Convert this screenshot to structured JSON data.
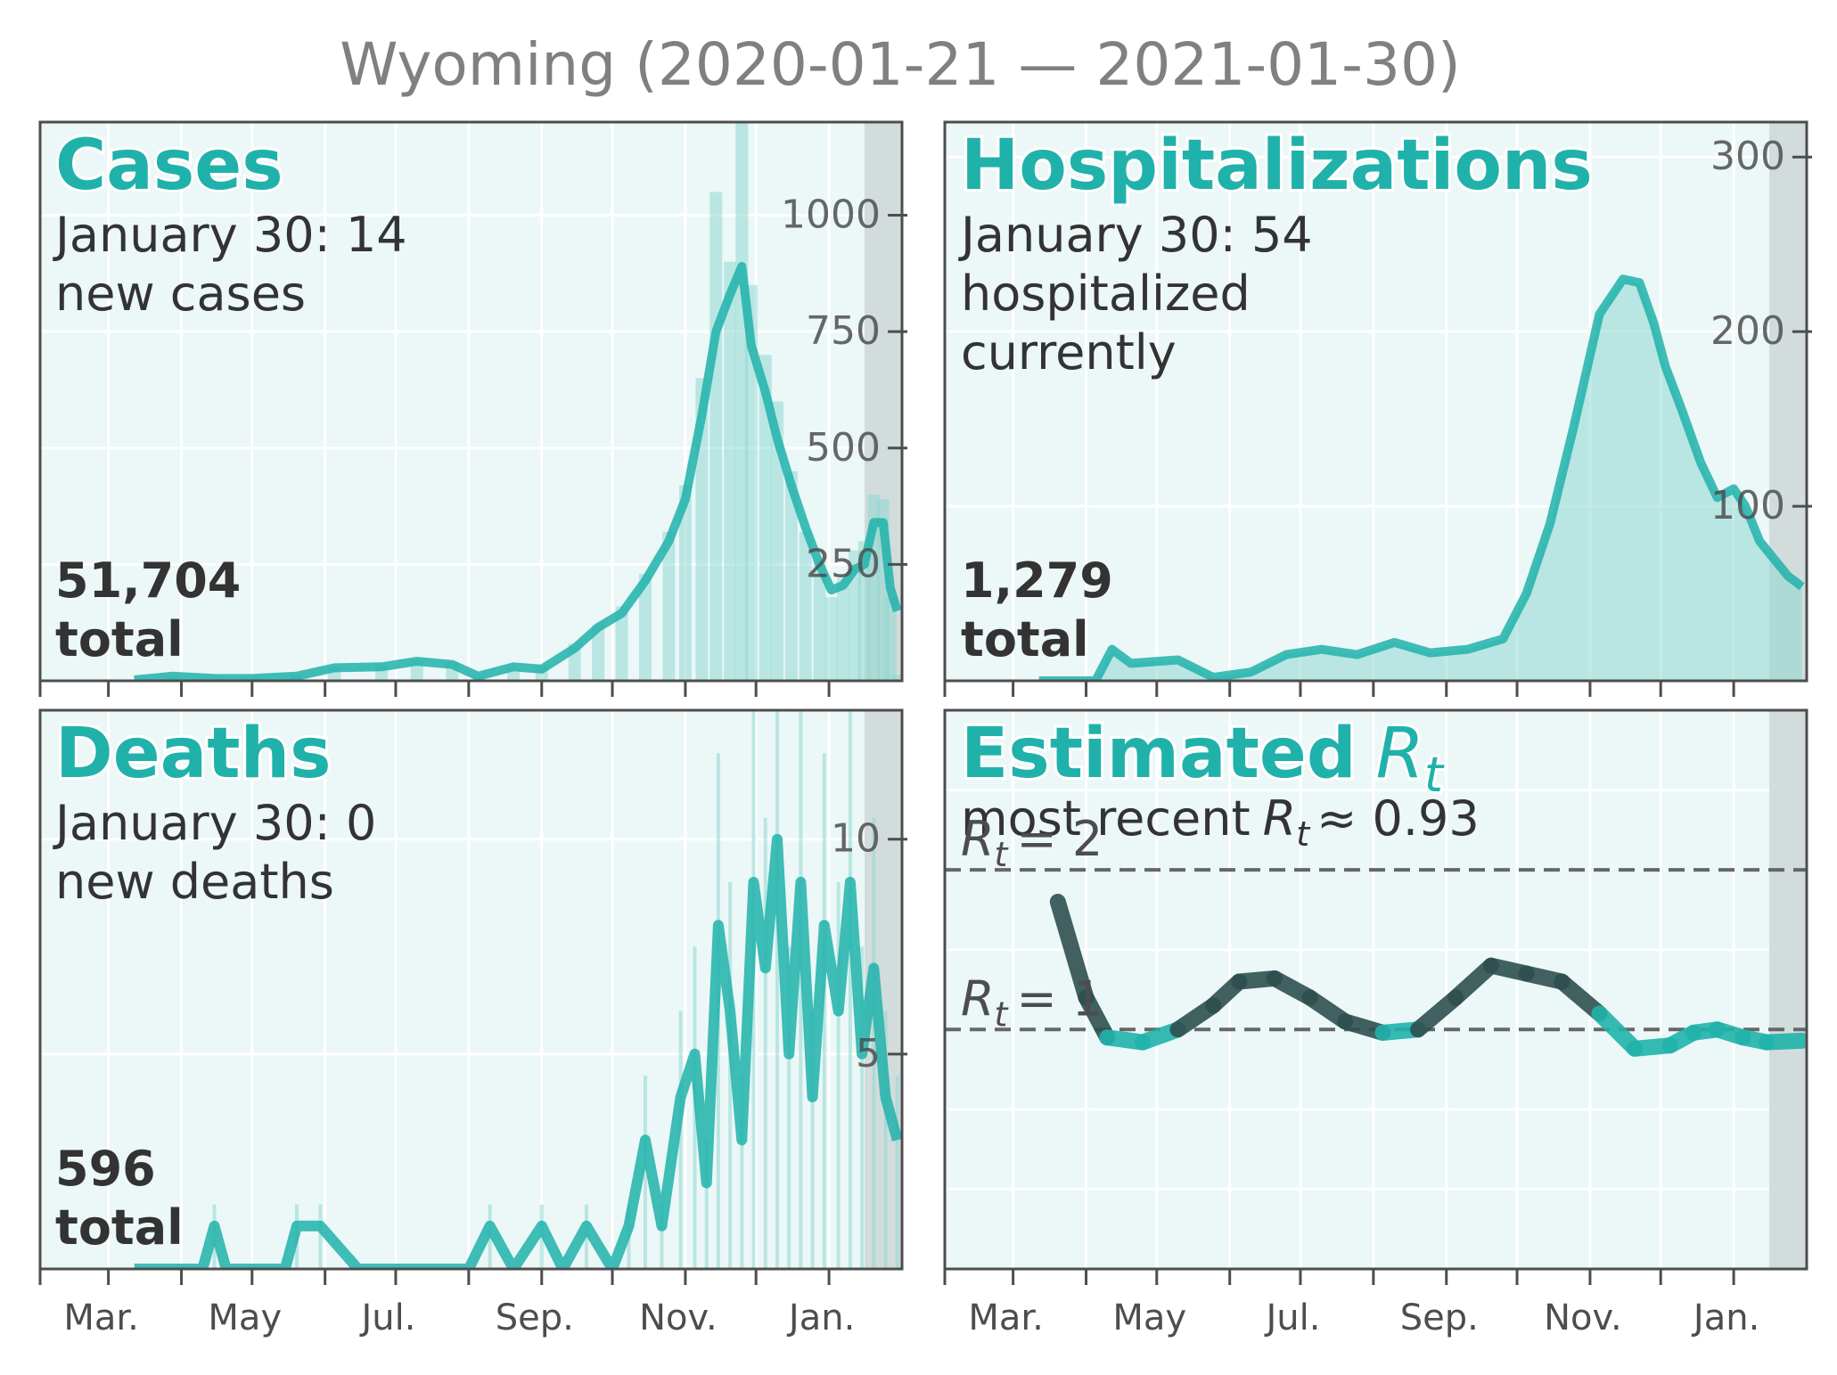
{
  "title": "Wyoming (2020-01-21 — 2021-01-30)",
  "colors": {
    "accent": "#20b2aa",
    "bar": "#8fd8d2",
    "panel_bg": "#ecf7f7",
    "projection": "#d3dcdc",
    "dark_line": "#2f4f4f",
    "text": "#333333",
    "muted": "#777777"
  },
  "x_ticks": [
    "Mar.",
    "May",
    "Jul.",
    "Sep.",
    "Nov.",
    "Jan."
  ],
  "panels": {
    "cases": {
      "title": "Cases",
      "latest_line1": "January 30: 14",
      "latest_line2": "new cases",
      "total_value": "51,704",
      "total_label": "total"
    },
    "hospitalizations": {
      "title": "Hospitalizations",
      "latest_line1": "January 30: 54",
      "latest_line2": "hospitalized",
      "latest_line3": "currently",
      "total_value": "1,279",
      "total_label": "total"
    },
    "deaths": {
      "title": "Deaths",
      "latest_line1": "January 30: 0",
      "latest_line2": "new deaths",
      "total_value": "596",
      "total_label": "total"
    },
    "rt": {
      "title": "Estimated",
      "title_symbol": "R",
      "title_sub": "t",
      "recent_prefix": "most recent",
      "recent_symbol": "R",
      "recent_sub": "t",
      "recent_value": "≈ 0.93",
      "ref2_symbol": "R",
      "ref2_sub": "t",
      "ref2_text": "= 2",
      "ref1_symbol": "R",
      "ref1_sub": "t",
      "ref1_text": "= 1"
    }
  },
  "chart_data": [
    {
      "type": "line",
      "name": "cases",
      "x": [
        "2020-03-12",
        "2020-03-28",
        "2020-04-15",
        "2020-05-01",
        "2020-05-20",
        "2020-06-05",
        "2020-06-25",
        "2020-07-10",
        "2020-07-25",
        "2020-08-05",
        "2020-08-20",
        "2020-09-01",
        "2020-09-15",
        "2020-09-25",
        "2020-10-05",
        "2020-10-15",
        "2020-10-25",
        "2020-11-01",
        "2020-11-08",
        "2020-11-14",
        "2020-11-20",
        "2020-11-25",
        "2020-11-29",
        "2020-12-05",
        "2020-12-10",
        "2020-12-16",
        "2020-12-22",
        "2020-12-28",
        "2021-01-02",
        "2021-01-07",
        "2021-01-12",
        "2021-01-16",
        "2021-01-20",
        "2021-01-24",
        "2021-01-27",
        "2021-01-30"
      ],
      "y": [
        2,
        10,
        5,
        5,
        10,
        28,
        30,
        42,
        35,
        10,
        30,
        25,
        70,
        115,
        145,
        215,
        300,
        390,
        570,
        750,
        830,
        890,
        720,
        620,
        520,
        420,
        330,
        250,
        195,
        205,
        240,
        250,
        340,
        340,
        200,
        150
      ],
      "bars": [
        0,
        8,
        4,
        6,
        12,
        30,
        32,
        45,
        40,
        8,
        28,
        30,
        80,
        120,
        160,
        230,
        320,
        420,
        650,
        1050,
        900,
        1200,
        850,
        700,
        600,
        450,
        320,
        260,
        180,
        220,
        280,
        300,
        400,
        390,
        180,
        14
      ],
      "yticks": [
        250,
        500,
        750,
        1000
      ],
      "ylim": [
        0,
        1200
      ]
    },
    {
      "type": "line",
      "name": "hospitalizations",
      "x": [
        "2020-03-12",
        "2020-04-05",
        "2020-04-12",
        "2020-04-20",
        "2020-05-10",
        "2020-05-25",
        "2020-06-10",
        "2020-06-25",
        "2020-07-10",
        "2020-07-25",
        "2020-08-10",
        "2020-08-25",
        "2020-09-10",
        "2020-09-25",
        "2020-10-05",
        "2020-10-15",
        "2020-10-25",
        "2020-11-05",
        "2020-11-15",
        "2020-11-22",
        "2020-11-28",
        "2020-12-03",
        "2020-12-10",
        "2020-12-18",
        "2020-12-25",
        "2021-01-01",
        "2021-01-06",
        "2021-01-12",
        "2021-01-18",
        "2021-01-24",
        "2021-01-30"
      ],
      "y": [
        0,
        0,
        18,
        10,
        12,
        2,
        5,
        15,
        18,
        15,
        22,
        16,
        18,
        24,
        50,
        90,
        145,
        210,
        230,
        228,
        205,
        180,
        155,
        125,
        105,
        110,
        100,
        80,
        70,
        60,
        54
      ],
      "yticks": [
        100,
        200,
        300
      ],
      "ylim": [
        0,
        320
      ]
    },
    {
      "type": "line",
      "name": "deaths",
      "x": [
        "2020-03-12",
        "2020-04-10",
        "2020-04-15",
        "2020-04-20",
        "2020-05-15",
        "2020-05-20",
        "2020-05-30",
        "2020-06-15",
        "2020-07-01",
        "2020-07-15",
        "2020-08-01",
        "2020-08-10",
        "2020-08-20",
        "2020-09-01",
        "2020-09-10",
        "2020-09-20",
        "2020-10-01",
        "2020-10-08",
        "2020-10-15",
        "2020-10-22",
        "2020-10-30",
        "2020-11-05",
        "2020-11-10",
        "2020-11-15",
        "2020-11-20",
        "2020-11-25",
        "2020-11-30",
        "2020-12-05",
        "2020-12-10",
        "2020-12-15",
        "2020-12-20",
        "2020-12-25",
        "2020-12-30",
        "2021-01-05",
        "2021-01-10",
        "2021-01-15",
        "2021-01-20",
        "2021-01-25",
        "2021-01-30"
      ],
      "y": [
        0,
        0,
        1,
        0,
        0,
        1,
        1,
        0,
        0,
        0,
        0,
        1,
        0,
        1,
        0,
        1,
        0,
        1,
        3,
        1,
        4,
        5,
        2,
        8,
        6,
        3,
        9,
        7,
        10,
        5,
        9,
        4,
        8,
        6,
        9,
        5,
        7,
        4,
        3
      ],
      "yticks": [
        5,
        10
      ],
      "ylim": [
        0,
        13
      ]
    },
    {
      "type": "line",
      "name": "rt",
      "x": [
        "2020-03-20",
        "2020-04-01",
        "2020-04-10",
        "2020-04-25",
        "2020-05-10",
        "2020-05-25",
        "2020-06-05",
        "2020-06-20",
        "2020-07-05",
        "2020-07-20",
        "2020-08-05",
        "2020-08-20",
        "2020-09-05",
        "2020-09-20",
        "2020-10-05",
        "2020-10-20",
        "2020-11-05",
        "2020-11-20",
        "2020-12-05",
        "2020-12-15",
        "2020-12-25",
        "2021-01-05",
        "2021-01-15",
        "2021-01-30"
      ],
      "y": [
        1.8,
        1.2,
        0.95,
        0.92,
        1.0,
        1.15,
        1.3,
        1.32,
        1.2,
        1.05,
        0.98,
        1.0,
        1.2,
        1.4,
        1.35,
        1.3,
        1.1,
        0.88,
        0.9,
        0.98,
        1.0,
        0.95,
        0.92,
        0.93
      ],
      "reference_lines": [
        1,
        2
      ],
      "ylim": [
        -0.5,
        3.0
      ]
    }
  ]
}
